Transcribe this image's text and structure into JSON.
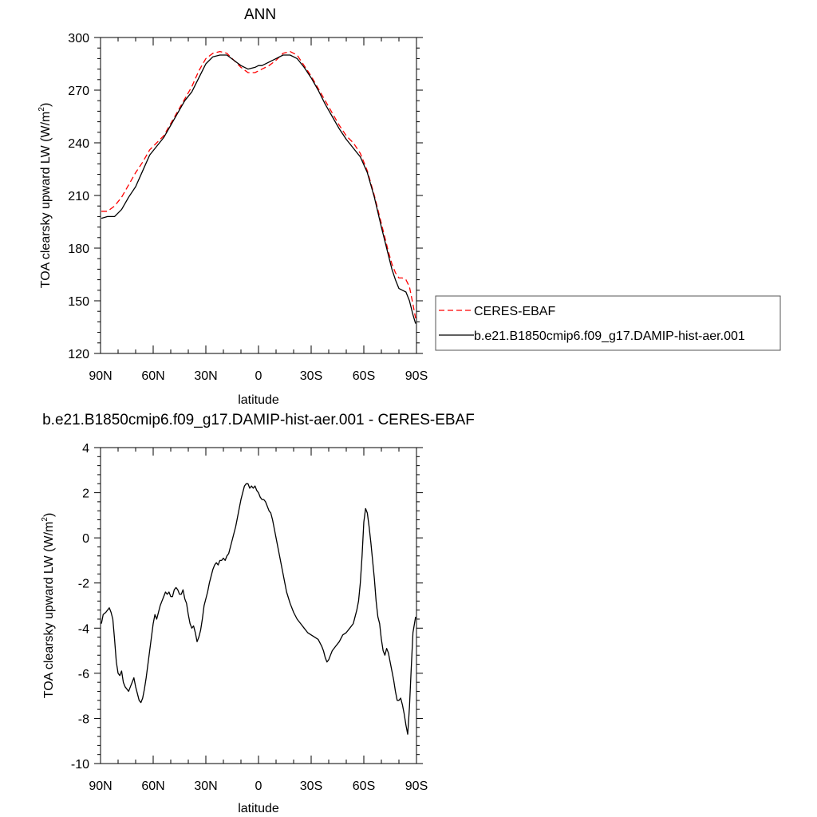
{
  "chart_data": [
    {
      "type": "line",
      "title": "ANN",
      "xlabel": "latitude",
      "ylabel": "TOA clearsky upward LW (W/m",
      "ylabel_sup": "2",
      "ylabel_end": ")",
      "xlim": [
        90,
        -90
      ],
      "ylim": [
        120,
        300
      ],
      "xticks": [
        90,
        60,
        30,
        0,
        -30,
        -60,
        -90
      ],
      "xtick_labels": [
        "90N",
        "60N",
        "30N",
        "0",
        "30S",
        "60S",
        "90S"
      ],
      "yticks": [
        120,
        150,
        180,
        210,
        240,
        270,
        300
      ],
      "ytick_labels": [
        "120",
        "150",
        "180",
        "210",
        "240",
        "270",
        "300"
      ],
      "legend_position": "right",
      "series": [
        {
          "name": "CERES-EBAF",
          "color": "#ff0000",
          "dash": true,
          "x": [
            89.5,
            86,
            82,
            78,
            74,
            70,
            66,
            62,
            58,
            54,
            50,
            46,
            42,
            38,
            34,
            30,
            26,
            22,
            18,
            14,
            10,
            6,
            2,
            0,
            -2,
            -6,
            -10,
            -14,
            -18,
            -22,
            -26,
            -30,
            -34,
            -38,
            -42,
            -46,
            -50,
            -54,
            -58,
            -62,
            -66,
            -70,
            -74,
            -76,
            -78,
            -80,
            -82,
            -84,
            -86,
            -88,
            -89.5
          ],
          "values": [
            201,
            201,
            204,
            209,
            216,
            223,
            229,
            236,
            240,
            244,
            251,
            258,
            265,
            272,
            281,
            288,
            291,
            292,
            291,
            287,
            283,
            280,
            280,
            281,
            282,
            284,
            287,
            291,
            292,
            290,
            284,
            278,
            271,
            264,
            257,
            250,
            244,
            240,
            234,
            224,
            210,
            194,
            178,
            171,
            166,
            163,
            163,
            162,
            158,
            148,
            140
          ]
        },
        {
          "name": "b.e21.B1850cmip6.f09_g17.DAMIP-hist-aer.001",
          "color": "#000000",
          "dash": false,
          "x": [
            89.5,
            86,
            82,
            78,
            74,
            70,
            66,
            62,
            58,
            54,
            50,
            46,
            42,
            38,
            34,
            30,
            26,
            22,
            18,
            14,
            10,
            6,
            2,
            0,
            -2,
            -6,
            -10,
            -14,
            -18,
            -22,
            -26,
            -30,
            -34,
            -38,
            -42,
            -46,
            -50,
            -54,
            -58,
            -62,
            -66,
            -70,
            -74,
            -76,
            -78,
            -80,
            -82,
            -84,
            -86,
            -88,
            -89.5
          ],
          "values": [
            197,
            198,
            198,
            202,
            209,
            215,
            224,
            233,
            238,
            243,
            250,
            257,
            264,
            269,
            277,
            285,
            289,
            290,
            290,
            287,
            284,
            282,
            283,
            284,
            284,
            286,
            288,
            290,
            290,
            288,
            283,
            277,
            270,
            262,
            255,
            248,
            242,
            237,
            232,
            223,
            209,
            192,
            176,
            168,
            162,
            157,
            156,
            155,
            150,
            142,
            137
          ]
        }
      ]
    },
    {
      "type": "line",
      "title": "b.e21.B1850cmip6.f09_g17.DAMIP-hist-aer.001 - CERES-EBAF",
      "xlabel": "latitude",
      "ylabel": "TOA clearsky upward LW (W/m",
      "ylabel_sup": "2",
      "ylabel_end": ")",
      "xlim": [
        90,
        -90
      ],
      "ylim": [
        -10,
        4
      ],
      "xticks": [
        90,
        60,
        30,
        0,
        -30,
        -60,
        -90
      ],
      "xtick_labels": [
        "90N",
        "60N",
        "30N",
        "0",
        "30S",
        "60S",
        "90S"
      ],
      "yticks": [
        -10,
        -8,
        -6,
        -4,
        -2,
        0,
        2,
        4
      ],
      "ytick_labels": [
        "-10",
        "-8",
        "-6",
        "-4",
        "-2",
        "0",
        "2",
        "4"
      ],
      "series": [
        {
          "color": "#000000",
          "x": [
            89.5,
            88.5,
            87,
            85,
            84,
            83,
            82,
            81,
            80,
            79,
            78,
            77,
            76,
            74,
            73,
            72,
            71,
            70,
            68,
            67,
            66,
            65,
            64,
            62,
            61,
            60,
            59,
            58,
            57,
            56,
            55,
            54,
            53,
            52,
            51,
            50,
            49,
            48,
            47,
            46,
            45,
            44,
            43,
            42,
            41,
            40,
            39,
            38,
            37,
            36,
            35,
            34,
            33,
            32,
            31,
            30,
            29,
            28,
            27,
            26,
            25,
            24,
            23,
            22,
            21,
            20,
            19,
            18,
            17,
            16,
            15,
            14,
            13,
            12,
            11,
            10,
            9,
            8,
            7,
            6,
            5,
            4,
            3,
            2,
            1,
            0,
            -1,
            -2,
            -3,
            -4,
            -5,
            -6,
            -7,
            -8,
            -9,
            -10,
            -11,
            -12,
            -13,
            -14,
            -15,
            -16,
            -18,
            -20,
            -22,
            -24,
            -26,
            -28,
            -30,
            -32,
            -34,
            -36,
            -37,
            -38,
            -39,
            -40,
            -41,
            -42,
            -44,
            -46,
            -48,
            -50,
            -52,
            -54,
            -55,
            -56,
            -57,
            -58,
            -59,
            -60,
            -61,
            -62,
            -63,
            -64,
            -65,
            -66,
            -67,
            -68,
            -69,
            -70,
            -71,
            -72,
            -73,
            -74,
            -75,
            -76,
            -77,
            -78,
            -79,
            -80,
            -81,
            -82,
            -83,
            -84,
            -85,
            -86,
            -87,
            -88,
            -89.5
          ],
          "values": [
            -3.8,
            -3.4,
            -3.3,
            -3.1,
            -3.3,
            -3.6,
            -4.5,
            -5.5,
            -6.0,
            -6.1,
            -5.9,
            -6.4,
            -6.6,
            -6.8,
            -6.6,
            -6.4,
            -6.2,
            -6.6,
            -7.2,
            -7.3,
            -7.1,
            -6.7,
            -6.2,
            -5.0,
            -4.4,
            -3.8,
            -3.4,
            -3.6,
            -3.3,
            -3.0,
            -2.8,
            -2.6,
            -2.4,
            -2.5,
            -2.4,
            -2.6,
            -2.6,
            -2.3,
            -2.2,
            -2.3,
            -2.5,
            -2.5,
            -2.3,
            -2.7,
            -2.9,
            -3.4,
            -3.8,
            -4.0,
            -3.9,
            -4.2,
            -4.6,
            -4.4,
            -4.1,
            -3.6,
            -3.0,
            -2.7,
            -2.4,
            -2.0,
            -1.7,
            -1.4,
            -1.2,
            -1.1,
            -1.2,
            -1.0,
            -1.0,
            -0.9,
            -1.0,
            -0.8,
            -0.7,
            -0.4,
            -0.1,
            0.2,
            0.5,
            0.9,
            1.3,
            1.7,
            2.0,
            2.3,
            2.4,
            2.4,
            2.2,
            2.3,
            2.2,
            2.3,
            2.1,
            2.0,
            1.8,
            1.7,
            1.7,
            1.6,
            1.4,
            1.2,
            1.1,
            0.8,
            0.4,
            0.0,
            -0.4,
            -0.8,
            -1.2,
            -1.6,
            -2.0,
            -2.4,
            -2.9,
            -3.3,
            -3.6,
            -3.8,
            -4.0,
            -4.2,
            -4.3,
            -4.4,
            -4.5,
            -4.8,
            -5.0,
            -5.3,
            -5.5,
            -5.4,
            -5.2,
            -5.0,
            -4.8,
            -4.6,
            -4.3,
            -4.2,
            -4.0,
            -3.8,
            -3.5,
            -3.2,
            -2.8,
            -2.0,
            -0.8,
            0.7,
            1.3,
            1.1,
            0.5,
            -0.2,
            -1.0,
            -1.8,
            -2.8,
            -3.5,
            -3.8,
            -4.5,
            -5.0,
            -5.2,
            -4.9,
            -5.1,
            -5.5,
            -5.9,
            -6.3,
            -6.8,
            -7.2,
            -7.2,
            -7.1,
            -7.4,
            -7.8,
            -8.3,
            -8.7,
            -7.5,
            -5.8,
            -4.2,
            -3.5
          ]
        }
      ]
    }
  ]
}
